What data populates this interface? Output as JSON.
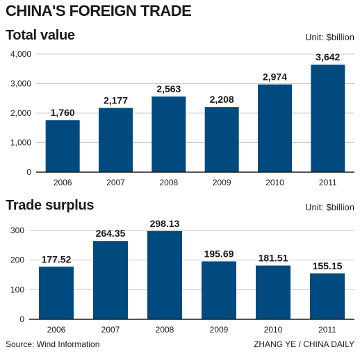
{
  "title": "CHINA'S FOREIGN TRADE",
  "source": "Source: Wind Information",
  "credit": "ZHANG YE / CHINA DAILY",
  "colors": {
    "bar": "#004a80",
    "grid": "#c8c8c8",
    "axis": "#1a1a1a"
  },
  "chart_data": [
    {
      "type": "bar",
      "title": "Total value",
      "unit_label": "Unit: $billion",
      "categories": [
        "2006",
        "2007",
        "2008",
        "2009",
        "2010",
        "2011"
      ],
      "values": [
        1760,
        2177,
        2563,
        2208,
        2974,
        3642
      ],
      "value_labels": [
        "1,760",
        "2,177",
        "2,563",
        "2,208",
        "2,974",
        "3,642"
      ],
      "yticks": [
        0,
        1000,
        2000,
        3000,
        4000
      ],
      "ytick_labels": [
        "0",
        "1,000",
        "2,000",
        "3,000",
        "4,000"
      ],
      "ylim": [
        0,
        4000
      ],
      "grid": true,
      "xlabel": "",
      "ylabel": ""
    },
    {
      "type": "bar",
      "title": "Trade surplus",
      "unit_label": "Unit: $billion",
      "categories": [
        "2006",
        "2007",
        "2008",
        "2009",
        "2010",
        "2011"
      ],
      "values": [
        177.52,
        264.35,
        298.13,
        195.69,
        181.51,
        155.15
      ],
      "value_labels": [
        "177.52",
        "264.35",
        "298.13",
        "195.69",
        "181.51",
        "155.15"
      ],
      "yticks": [
        0,
        100,
        200,
        300
      ],
      "ytick_labels": [
        "0",
        "100",
        "200",
        "300"
      ],
      "ylim": [
        0,
        300
      ],
      "grid": true,
      "xlabel": "",
      "ylabel": ""
    }
  ]
}
